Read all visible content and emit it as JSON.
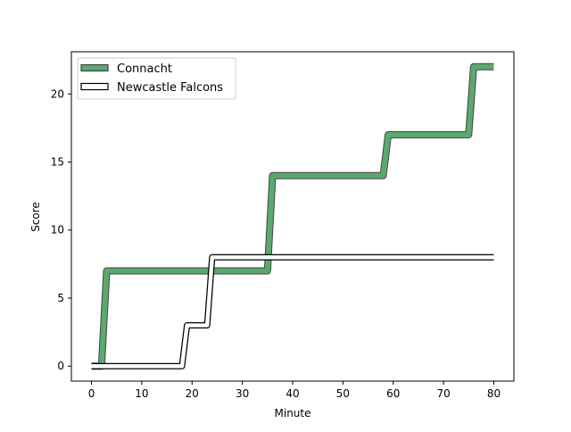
{
  "chart_data": {
    "type": "line",
    "xlabel": "Minute",
    "ylabel": "Score",
    "xlim": [
      -4,
      84
    ],
    "ylim": [
      -1.1,
      23.1
    ],
    "xticks": [
      0,
      10,
      20,
      30,
      40,
      50,
      60,
      70,
      80
    ],
    "yticks": [
      0,
      5,
      10,
      15,
      20
    ],
    "legend_position": "upper-left",
    "grid": false,
    "series": [
      {
        "name": "Connacht",
        "color": "#5aa96f",
        "edge_color": "#444444",
        "style": "thick-filled",
        "points": [
          [
            0,
            0
          ],
          [
            2,
            0
          ],
          [
            3,
            7
          ],
          [
            35,
            7
          ],
          [
            36,
            14
          ],
          [
            58,
            14
          ],
          [
            59,
            17
          ],
          [
            75,
            17
          ],
          [
            76,
            22
          ],
          [
            80,
            22
          ]
        ]
      },
      {
        "name": "Newcastle Falcons",
        "color": "#ffffff",
        "edge_color": "#000000",
        "style": "outlined",
        "points": [
          [
            0,
            0
          ],
          [
            18,
            0
          ],
          [
            19,
            3
          ],
          [
            23,
            3
          ],
          [
            24,
            8
          ],
          [
            80,
            8
          ]
        ]
      }
    ]
  }
}
